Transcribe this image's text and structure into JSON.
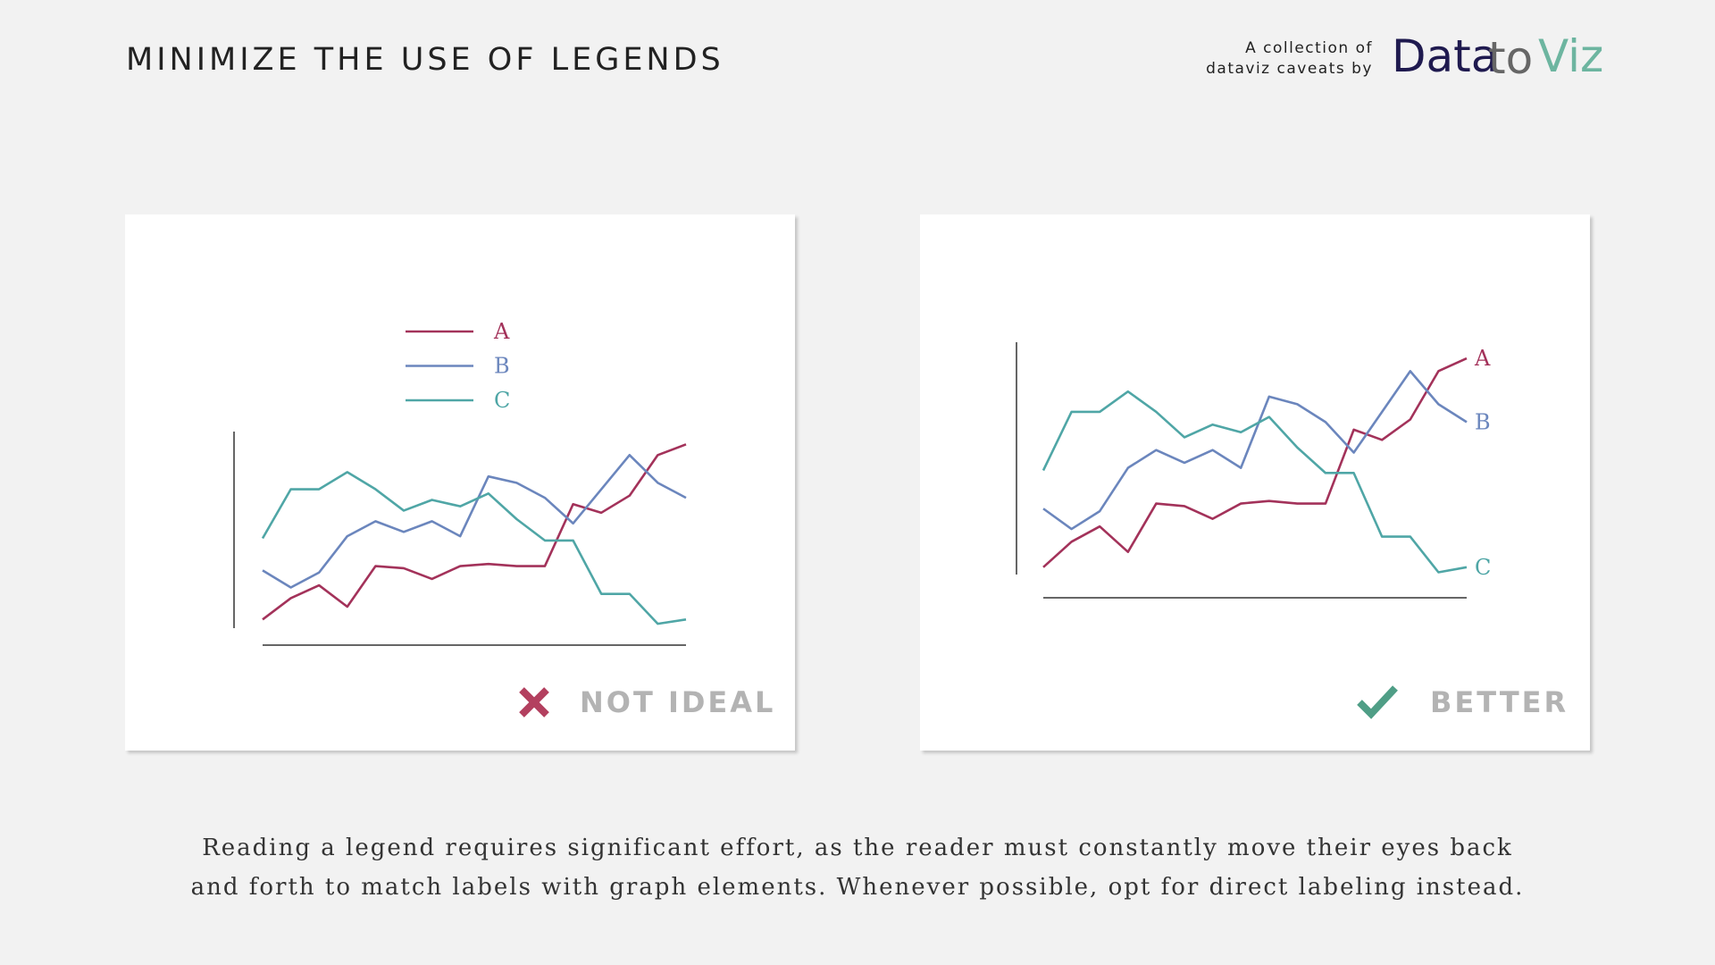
{
  "header": {
    "title": "MINIMIZE THE USE OF LEGENDS",
    "tagline": [
      "A collection of",
      "dataviz caveats by"
    ],
    "logo": [
      "Data",
      "to",
      "Viz"
    ]
  },
  "chart_data": [
    {
      "type": "line",
      "legend": "top",
      "verdict": "NOT IDEAL",
      "ylim": [
        0,
        100
      ],
      "categories": [
        null,
        null,
        null,
        null,
        null,
        null,
        null,
        null,
        null,
        null,
        null,
        null,
        null,
        null,
        null,
        null
      ],
      "series": [
        {
          "name": "A",
          "color": "#a3325a",
          "values": [
            12,
            22,
            28,
            18,
            37,
            36,
            31,
            37,
            38,
            37,
            37,
            66,
            62,
            70,
            89,
            94
          ]
        },
        {
          "name": "B",
          "color": "#6b86bd",
          "values": [
            35,
            27,
            34,
            51,
            58,
            53,
            58,
            51,
            79,
            76,
            69,
            57,
            73,
            89,
            76,
            69
          ]
        },
        {
          "name": "C",
          "color": "#4fa6a6",
          "values": [
            50,
            73,
            73,
            81,
            73,
            63,
            68,
            65,
            71,
            59,
            49,
            49,
            24,
            24,
            10,
            12
          ]
        }
      ]
    },
    {
      "type": "line",
      "direct_labels": true,
      "verdict": "BETTER",
      "ylim": [
        0,
        100
      ],
      "categories": [
        null,
        null,
        null,
        null,
        null,
        null,
        null,
        null,
        null,
        null,
        null,
        null,
        null,
        null,
        null,
        null
      ],
      "series": [
        {
          "name": "A",
          "color": "#a3325a",
          "values": [
            12,
            22,
            28,
            18,
            37,
            36,
            31,
            37,
            38,
            37,
            37,
            66,
            62,
            70,
            89,
            94
          ]
        },
        {
          "name": "B",
          "color": "#6b86bd",
          "values": [
            35,
            27,
            34,
            51,
            58,
            53,
            58,
            51,
            79,
            76,
            69,
            57,
            73,
            89,
            76,
            69
          ]
        },
        {
          "name": "C",
          "color": "#4fa6a6",
          "values": [
            50,
            73,
            73,
            81,
            73,
            63,
            68,
            65,
            71,
            59,
            49,
            49,
            24,
            24,
            10,
            12
          ]
        }
      ]
    }
  ],
  "caption": [
    "Reading a legend requires significant effort, as the reader must constantly move their eyes back",
    "and forth to match labels with graph elements. Whenever possible, opt for direct labeling instead."
  ]
}
